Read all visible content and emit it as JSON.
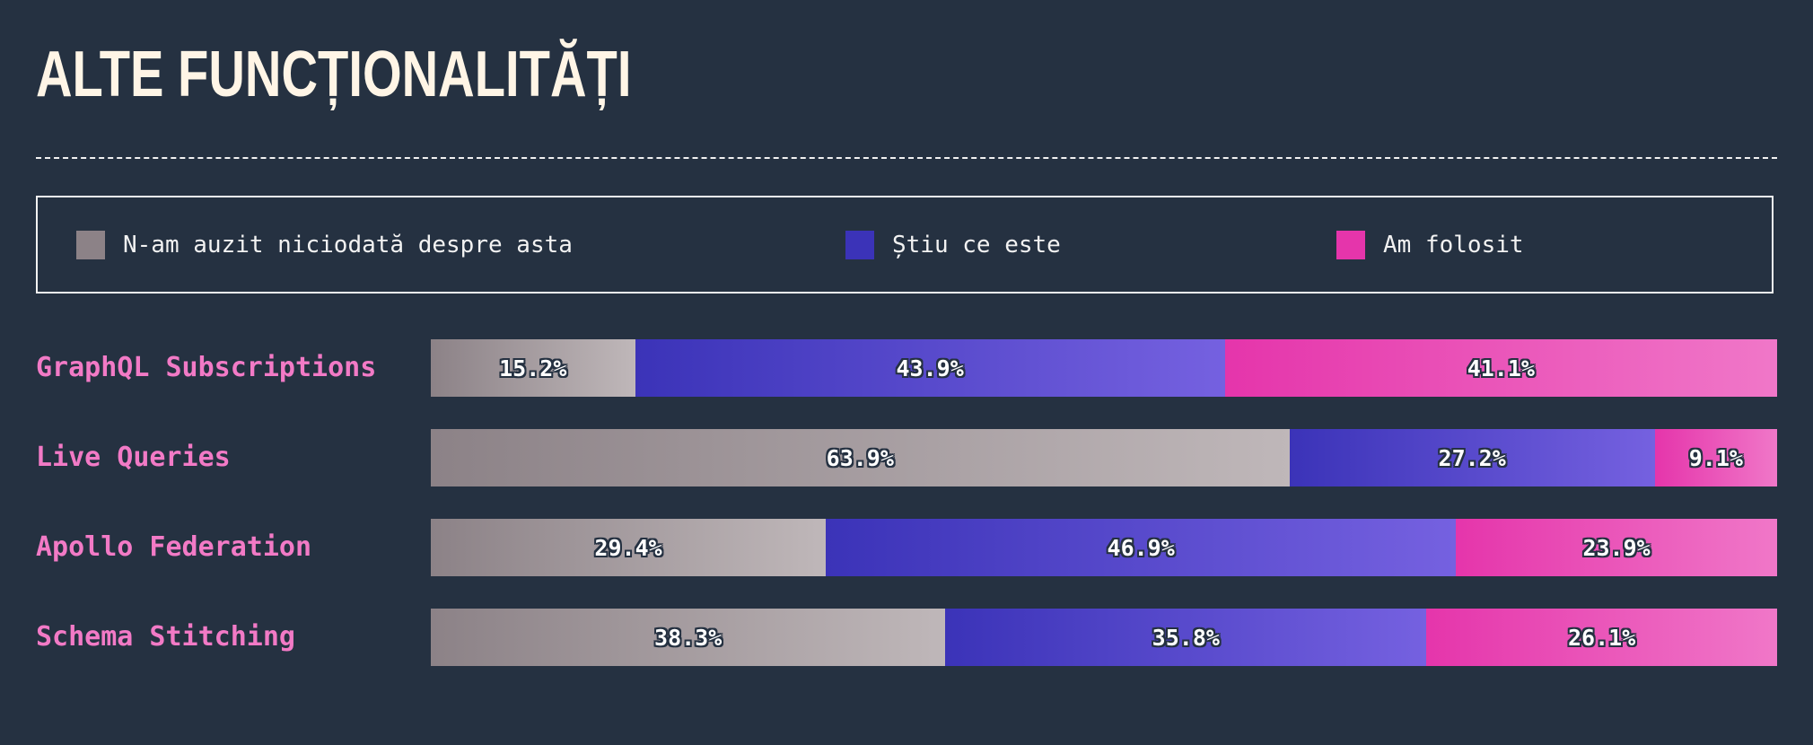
{
  "title": "ALTE FUNCȚIONALITĂȚI",
  "legend": [
    {
      "label": "N-am auzit niciodată despre asta",
      "color": "#8c8287"
    },
    {
      "label": "Știu ce este",
      "color": "#3b33b8"
    },
    {
      "label": "Am folosit",
      "color": "#e535ab"
    }
  ],
  "chart_data": {
    "type": "bar",
    "orientation": "horizontal",
    "stacked": true,
    "categories": [
      "GraphQL Subscriptions",
      "Live Queries",
      "Apollo Federation",
      "Schema Stitching"
    ],
    "series": [
      {
        "name": "N-am auzit niciodată despre asta",
        "values": [
          15.2,
          63.9,
          29.4,
          38.3
        ],
        "labels": [
          "15.2%",
          "63.9%",
          "29.4%",
          "38.3%"
        ],
        "gradient": [
          "#8c8287",
          "#bfb7b9"
        ]
      },
      {
        "name": "Știu ce este",
        "values": [
          43.9,
          27.2,
          46.9,
          35.8
        ],
        "labels": [
          "43.9%",
          "27.2%",
          "46.9%",
          "35.8%"
        ],
        "gradient": [
          "#3b33b8",
          "#7561e0"
        ]
      },
      {
        "name": "Am folosit",
        "values": [
          41.1,
          9.1,
          23.9,
          26.1
        ],
        "labels": [
          "41.1%",
          "9.1%",
          "23.9%",
          "26.1%"
        ],
        "gradient": [
          "#e535ab",
          "#f077c8"
        ]
      }
    ],
    "xlim": [
      0,
      100
    ],
    "unit": "%",
    "legend_position": "top"
  }
}
